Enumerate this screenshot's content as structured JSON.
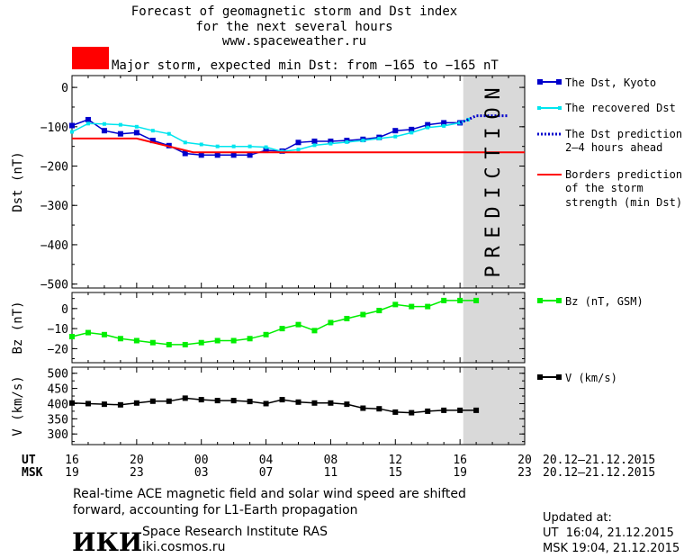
{
  "title_lines": [
    "Forecast of geomagnetic storm and Dst index",
    "for the next several hours",
    "www.spaceweather.ru"
  ],
  "storm_banner": {
    "text": "Major storm, expected min Dst: from −165 to −165 nT",
    "color": "#ff0000"
  },
  "prediction_label": "PREDICTION",
  "x_axis": {
    "ut_label": "UT",
    "msk_label": "MSK",
    "ut_ticks": [
      "16",
      "20",
      "00",
      "04",
      "08",
      "12",
      "16",
      "20"
    ],
    "msk_ticks": [
      "19",
      "23",
      "03",
      "07",
      "11",
      "15",
      "19",
      "23"
    ],
    "ut_range": "20.12–21.12.2015",
    "msk_range": "20.12–21.12.2015"
  },
  "legend": {
    "dst_kyoto": "The Dst, Kyoto",
    "dst_recovered": "The recovered Dst",
    "dst_prediction": [
      "The Dst prediction",
      "2–4 hours ahead"
    ],
    "borders": [
      "Borders prediction",
      "of the storm",
      "strength (min Dst)"
    ],
    "bz": "Bz (nT, GSM)",
    "v": "V (km/s)"
  },
  "footer": {
    "note": [
      "Real-time ACE magnetic field and solar wind speed are shifted",
      "forward, accounting for L1-Earth propagation"
    ],
    "logo": "ИКИ",
    "institute": "Space Research Institute RAS",
    "site": "iki.cosmos.ru",
    "updated_label": "Updated at:",
    "updated_ut": "UT  16:04, 21.12.2015",
    "updated_msk": "MSK 19:04, 21.12.2015"
  },
  "colors": {
    "kyoto": "#0000cc",
    "recovered": "#00e5ee",
    "prediction": "#0000cc",
    "border": "#ff0000",
    "bz": "#00ee00",
    "v": "#000000",
    "prediction_band": "#d9d9d9"
  },
  "chart_data": [
    {
      "type": "line",
      "ylabel": "Dst (nT)",
      "ylim": [
        -510,
        30
      ],
      "yticks": [
        0,
        -100,
        -200,
        -300,
        -400,
        -500
      ],
      "x_unit": "hours since 16 UT 20.12.2015",
      "xlim": [
        0,
        28
      ],
      "series": [
        {
          "name": "The Dst, Kyoto",
          "x": [
            0,
            1,
            2,
            3,
            4,
            5,
            6,
            7,
            8,
            9,
            10,
            11,
            12,
            13,
            14,
            15,
            16,
            17,
            18,
            19,
            20,
            21,
            22,
            23,
            24
          ],
          "values": [
            -97,
            -82,
            -110,
            -118,
            -115,
            -135,
            -148,
            -168,
            -172,
            -172,
            -172,
            -172,
            -160,
            -162,
            -140,
            -137,
            -137,
            -135,
            -132,
            -127,
            -110,
            -107,
            -95,
            -90,
            -90
          ]
        },
        {
          "name": "The recovered Dst",
          "x": [
            0,
            1,
            2,
            3,
            4,
            5,
            6,
            7,
            8,
            9,
            10,
            11,
            12,
            13,
            14,
            15,
            16,
            17,
            18,
            19,
            20,
            21,
            22,
            23,
            24,
            24.5
          ],
          "values": [
            -113,
            -92,
            -93,
            -95,
            -100,
            -110,
            -118,
            -140,
            -145,
            -150,
            -150,
            -150,
            -152,
            -163,
            -158,
            -147,
            -143,
            -139,
            -135,
            -130,
            -125,
            -115,
            -102,
            -98,
            -90,
            -82
          ]
        },
        {
          "name": "The Dst prediction 2–4 hours ahead",
          "x": [
            24,
            24.5,
            25,
            26,
            27
          ],
          "values": [
            -90,
            -82,
            -72,
            -72,
            -72
          ]
        },
        {
          "name": "Borders prediction of the storm strength (min Dst)",
          "x": [
            0,
            4,
            7.5,
            28
          ],
          "values": [
            -130,
            -130,
            -165,
            -165
          ]
        }
      ]
    },
    {
      "type": "line",
      "ylabel": "Bz (nT)",
      "ylim": [
        -27,
        8
      ],
      "yticks": [
        0,
        -10,
        -20
      ],
      "series": [
        {
          "name": "Bz (nT, GSM)",
          "x": [
            0,
            1,
            2,
            3,
            4,
            5,
            6,
            7,
            8,
            9,
            10,
            11,
            12,
            13,
            14,
            15,
            16,
            17,
            18,
            19,
            20,
            21,
            22,
            23,
            24,
            25
          ],
          "values": [
            -14,
            -12,
            -13,
            -15,
            -16,
            -17,
            -18,
            -18,
            -17,
            -16,
            -16,
            -15,
            -13,
            -10,
            -8,
            -11,
            -7,
            -5,
            -3,
            -1,
            2,
            1,
            1,
            4,
            4,
            4
          ]
        }
      ]
    },
    {
      "type": "line",
      "ylabel": "V (km/s)",
      "ylim": [
        265,
        520
      ],
      "yticks": [
        500,
        450,
        400,
        350,
        300
      ],
      "series": [
        {
          "name": "V (km/s)",
          "x": [
            0,
            1,
            2,
            3,
            4,
            5,
            6,
            7,
            8,
            9,
            10,
            11,
            12,
            13,
            14,
            15,
            16,
            17,
            18,
            19,
            20,
            21,
            22,
            23,
            24,
            25
          ],
          "values": [
            402,
            400,
            398,
            396,
            402,
            408,
            408,
            418,
            413,
            410,
            410,
            407,
            400,
            413,
            405,
            402,
            402,
            398,
            385,
            383,
            372,
            370,
            375,
            378,
            378,
            378
          ]
        }
      ]
    }
  ]
}
